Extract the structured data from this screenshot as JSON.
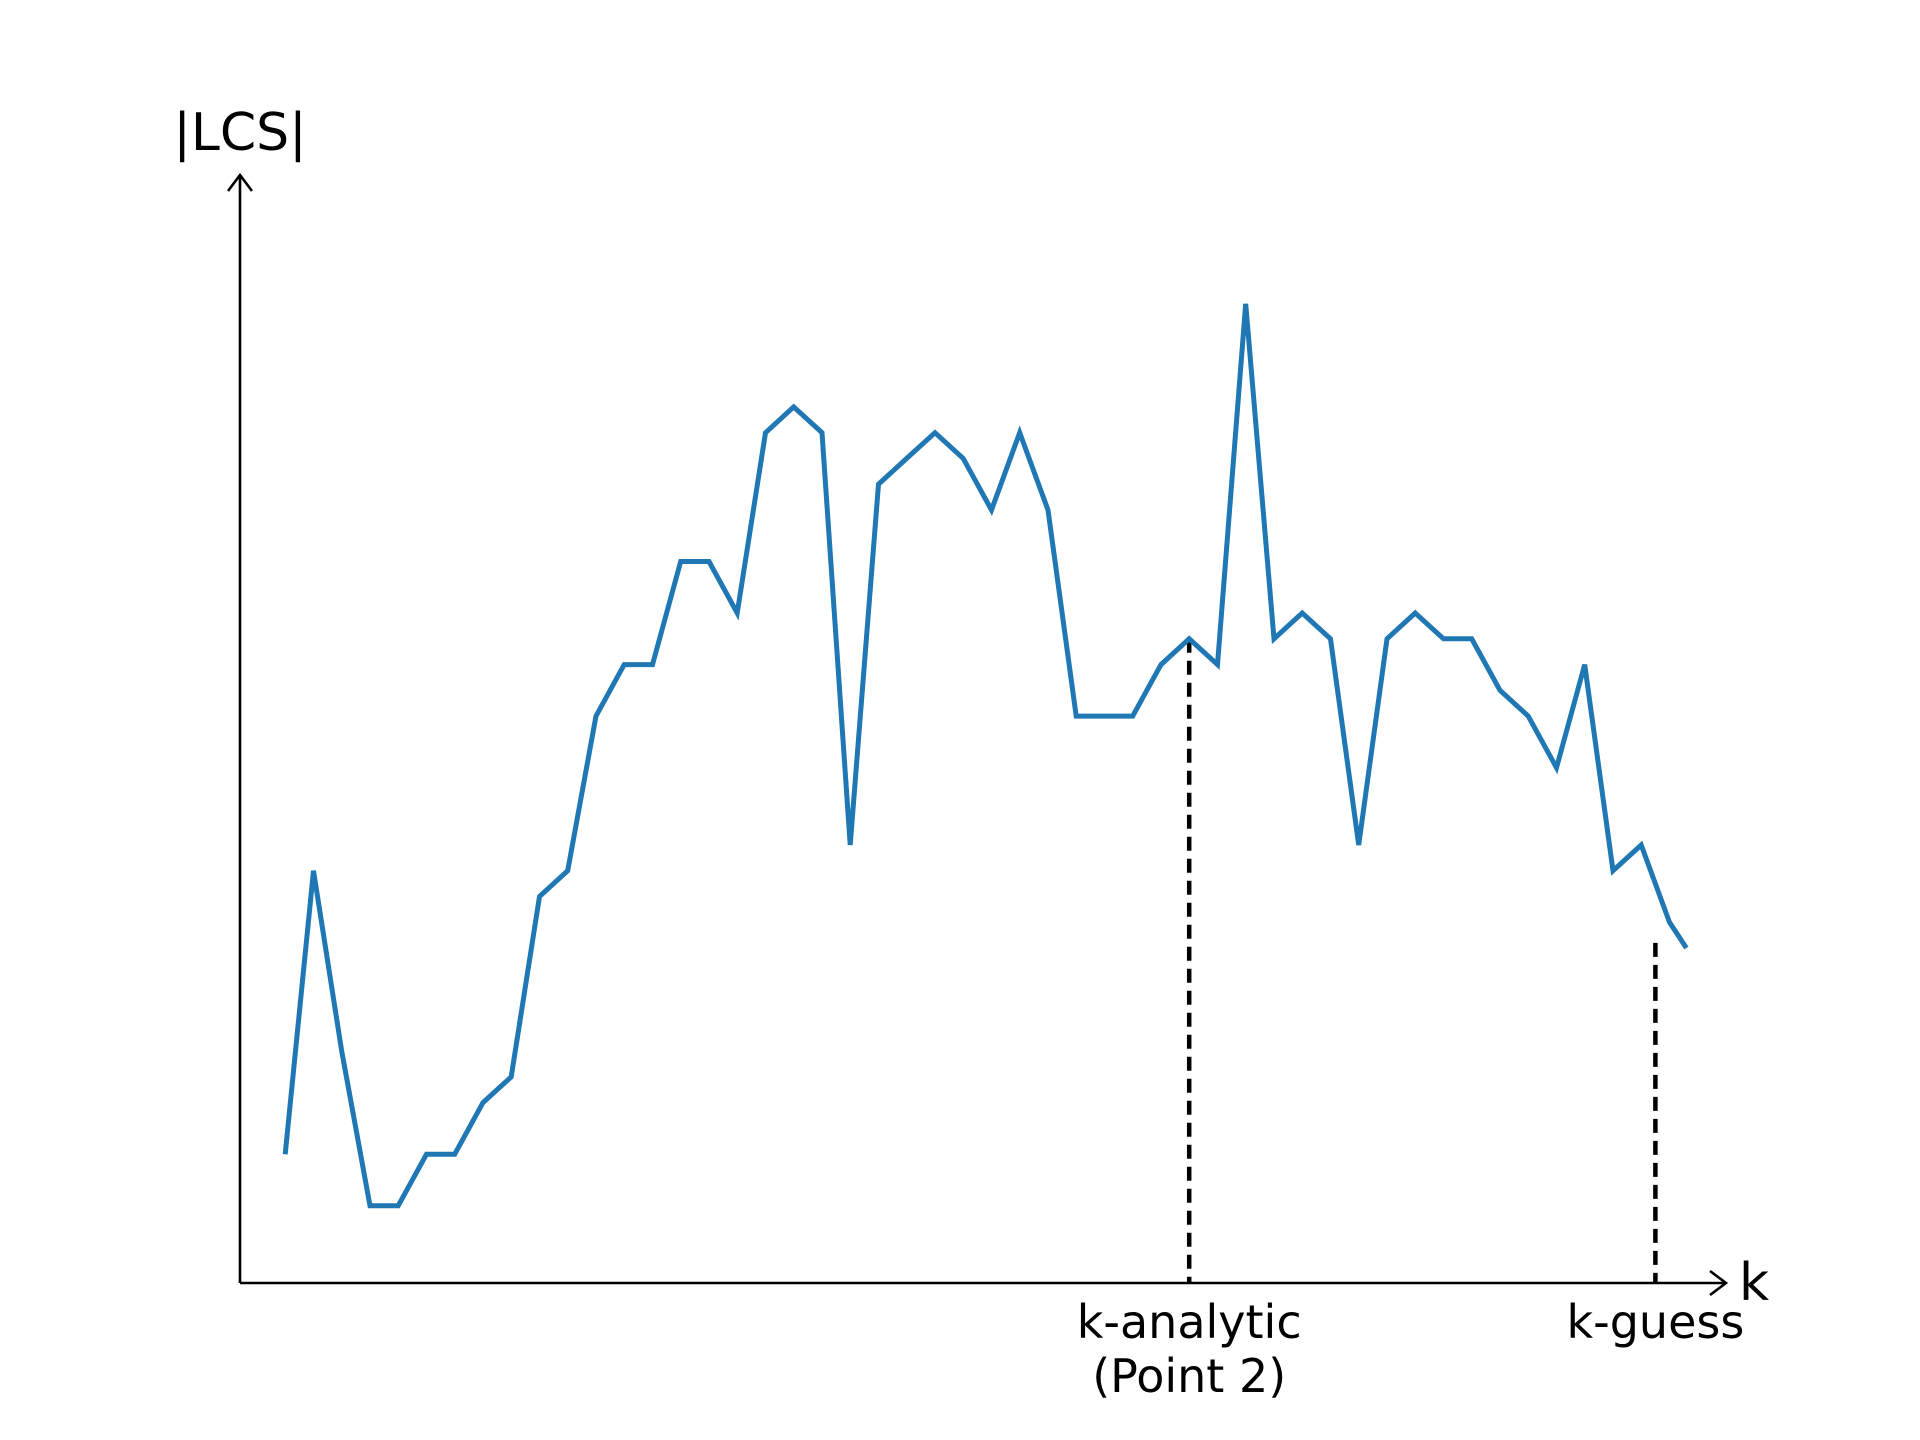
{
  "chart_data": {
    "type": "line",
    "title": "",
    "xlabel": "k",
    "ylabel": "|LCS|",
    "grid": false,
    "legend": "none",
    "xlim": [
      -1.6,
      51
    ],
    "ylim": [
      -1,
      42
    ],
    "series": [
      {
        "color": "#1f77b4",
        "x": [
          0,
          1,
          2,
          3,
          4,
          5,
          6,
          7,
          8,
          9,
          10,
          11,
          12,
          13,
          14,
          15,
          16,
          17,
          18,
          19,
          20,
          21,
          22,
          23,
          24,
          25,
          26,
          27,
          28,
          29,
          30,
          31,
          32,
          33,
          34,
          35,
          36,
          37,
          38,
          39,
          40,
          41,
          42,
          43,
          44,
          45,
          46,
          47,
          48,
          49,
          49.6
        ],
        "y": [
          4,
          15,
          8,
          2,
          2,
          4,
          4,
          6,
          7,
          14,
          15,
          21,
          23,
          23,
          27,
          27,
          25,
          32,
          33,
          32,
          16,
          30,
          31,
          32,
          31,
          29,
          32,
          29,
          21,
          21,
          21,
          23,
          24,
          23,
          37,
          24,
          25,
          24,
          16,
          24,
          25,
          24,
          24,
          22,
          21,
          19,
          23,
          15,
          16,
          13,
          12
        ]
      }
    ],
    "markers": [
      {
        "x": 32,
        "y": 24,
        "label_line1": "k-analytic",
        "label_line2": "(Point 2)"
      },
      {
        "x": 48.5,
        "y": 12.2,
        "label_line1": "k-guess"
      }
    ]
  }
}
